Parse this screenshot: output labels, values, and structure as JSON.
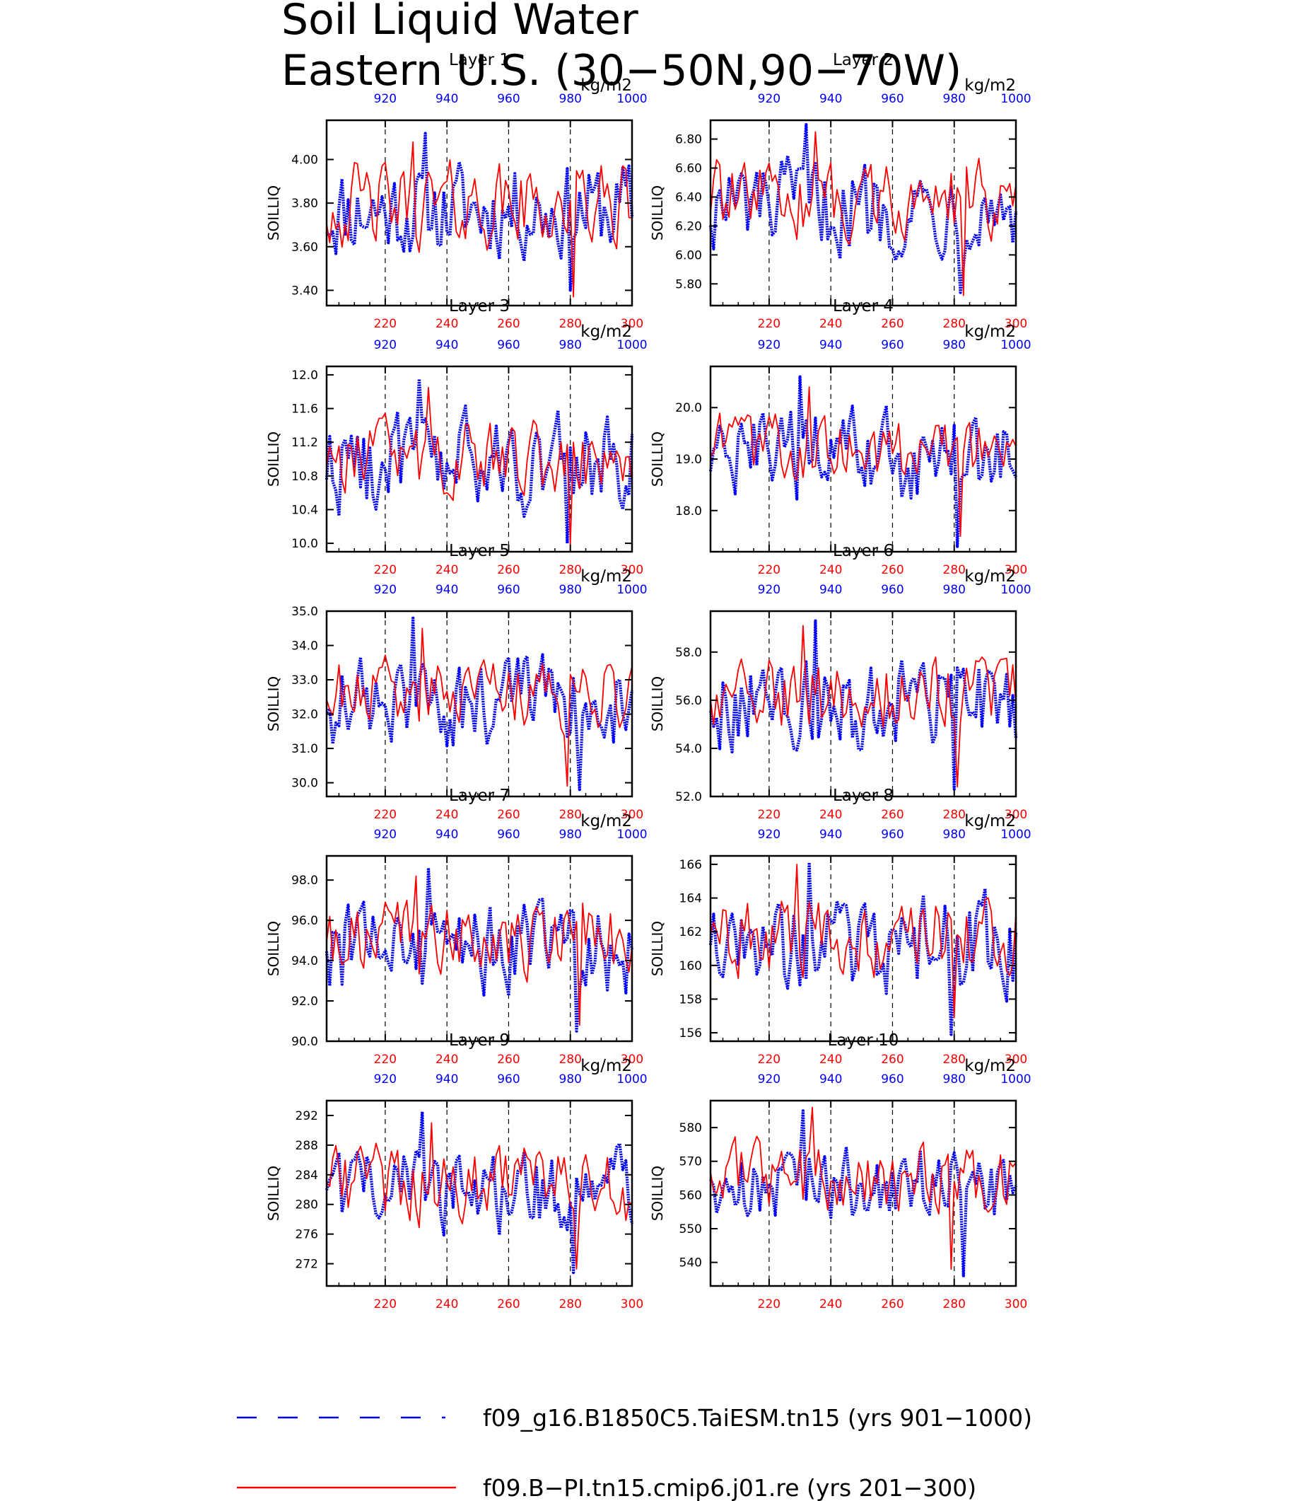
{
  "title": {
    "line1": "Soil Liquid Water",
    "line2": "Eastern U.S. (30−50N,90−70W)"
  },
  "units_label": "kg/m2",
  "ylabel": "SOILLIQ",
  "colors": {
    "series_a": "#0000ff",
    "series_b": "#ff0000",
    "axis": "#000000"
  },
  "legend": [
    {
      "name": "f09_g16.B1850C5.TaiESM.tn15 (yrs 901−1000)",
      "style": "dashed",
      "color": "#0000ff"
    },
    {
      "name": "f09.B−PI.tn15.cmip6.j01.re (yrs 201−300)",
      "style": "solid",
      "color": "#ff0000"
    }
  ],
  "chart_data": [
    {
      "type": "line",
      "title": "Layer 1",
      "ylabel": "SOILLIQ",
      "units": "kg/m2",
      "x_bottom": {
        "range": [
          201,
          300
        ],
        "ticks": [
          220,
          240,
          260,
          280,
          300
        ],
        "color": "#ff0000"
      },
      "x_top": {
        "range": [
          901,
          1000
        ],
        "ticks": [
          920,
          940,
          960,
          980,
          1000
        ],
        "color": "#0000ff"
      },
      "ylim": [
        3.33,
        4.18
      ],
      "yticks": [
        3.4,
        3.6,
        3.8,
        4.0
      ],
      "ytick_labels": [
        "3.40",
        "3.60",
        "3.80",
        "4.00"
      ],
      "vertical_dashed_lines_at": [
        220,
        240,
        260,
        280
      ],
      "series": [
        {
          "color": "#0000ff",
          "style": "dotted-thick",
          "mean": 3.77,
          "amp": 0.17,
          "min": 3.4,
          "max": 4.12
        },
        {
          "color": "#ff0000",
          "style": "solid",
          "mean": 3.79,
          "amp": 0.15,
          "min": 3.37,
          "max": 4.08
        }
      ]
    },
    {
      "type": "line",
      "title": "Layer 2",
      "ylabel": "SOILLIQ",
      "units": "kg/m2",
      "x_bottom": {
        "range": [
          201,
          300
        ],
        "ticks": [
          220,
          240,
          260,
          280,
          300
        ],
        "color": "#ff0000"
      },
      "x_top": {
        "range": [
          901,
          1000
        ],
        "ticks": [
          920,
          940,
          960,
          980,
          1000
        ],
        "color": "#0000ff"
      },
      "ylim": [
        5.65,
        6.93
      ],
      "yticks": [
        5.8,
        6.0,
        6.2,
        6.4,
        6.6,
        6.8
      ],
      "ytick_labels": [
        "5.80",
        "6.00",
        "6.20",
        "6.40",
        "6.60",
        "6.80"
      ],
      "vertical_dashed_lines_at": [
        220,
        240,
        260,
        280
      ],
      "series": [
        {
          "color": "#0000ff",
          "style": "dotted-thick",
          "mean": 6.33,
          "amp": 0.25,
          "min": 5.74,
          "max": 6.9
        },
        {
          "color": "#ff0000",
          "style": "solid",
          "mean": 6.38,
          "amp": 0.2,
          "min": 5.72,
          "max": 6.85
        }
      ]
    },
    {
      "type": "line",
      "title": "Layer 3",
      "ylabel": "SOILLIQ",
      "units": "kg/m2",
      "x_bottom": {
        "range": [
          201,
          300
        ],
        "ticks": [
          220,
          240,
          260,
          280,
          300
        ],
        "color": "#ff0000"
      },
      "x_top": {
        "range": [
          901,
          1000
        ],
        "ticks": [
          920,
          940,
          960,
          980,
          1000
        ],
        "color": "#0000ff"
      },
      "ylim": [
        9.9,
        12.1
      ],
      "yticks": [
        10.0,
        10.4,
        10.8,
        11.2,
        11.6,
        12.0
      ],
      "ytick_labels": [
        "10.0",
        "10.4",
        "10.8",
        "11.2",
        "11.6",
        "12.0"
      ],
      "vertical_dashed_lines_at": [
        220,
        240,
        260,
        280
      ],
      "series": [
        {
          "color": "#0000ff",
          "style": "dotted-thick",
          "mean": 10.95,
          "amp": 0.45,
          "min": 10.0,
          "max": 11.95
        },
        {
          "color": "#ff0000",
          "style": "solid",
          "mean": 11.05,
          "amp": 0.35,
          "min": 9.98,
          "max": 11.85
        }
      ]
    },
    {
      "type": "line",
      "title": "Layer 4",
      "ylabel": "SOILLIQ",
      "units": "kg/m2",
      "x_bottom": {
        "range": [
          201,
          300
        ],
        "ticks": [
          220,
          240,
          260,
          280,
          300
        ],
        "color": "#ff0000"
      },
      "x_top": {
        "range": [
          901,
          1000
        ],
        "ticks": [
          920,
          940,
          960,
          980,
          1000
        ],
        "color": "#0000ff"
      },
      "ylim": [
        17.2,
        20.8
      ],
      "yticks": [
        18.0,
        19.0,
        20.0
      ],
      "ytick_labels": [
        "18.0",
        "19.0",
        "20.0"
      ],
      "vertical_dashed_lines_at": [
        220,
        240,
        260,
        280
      ],
      "series": [
        {
          "color": "#0000ff",
          "style": "dotted-thick",
          "mean": 19.0,
          "amp": 0.7,
          "min": 17.3,
          "max": 20.6
        },
        {
          "color": "#ff0000",
          "style": "solid",
          "mean": 19.2,
          "amp": 0.5,
          "min": 17.5,
          "max": 20.4
        }
      ]
    },
    {
      "type": "line",
      "title": "Layer 5",
      "ylabel": "SOILLIQ",
      "units": "kg/m2",
      "x_bottom": {
        "range": [
          201,
          300
        ],
        "ticks": [
          220,
          240,
          260,
          280,
          300
        ],
        "color": "#ff0000"
      },
      "x_top": {
        "range": [
          901,
          1000
        ],
        "ticks": [
          920,
          940,
          960,
          980,
          1000
        ],
        "color": "#0000ff"
      },
      "ylim": [
        29.6,
        35.0
      ],
      "yticks": [
        30.0,
        31.0,
        32.0,
        33.0,
        34.0,
        35.0
      ],
      "ytick_labels": [
        "30.0",
        "31.0",
        "32.0",
        "33.0",
        "34.0",
        "35.0"
      ],
      "vertical_dashed_lines_at": [
        220,
        240,
        260,
        280
      ],
      "series": [
        {
          "color": "#0000ff",
          "style": "dotted-thick",
          "mean": 32.3,
          "amp": 1.0,
          "min": 29.8,
          "max": 34.8
        },
        {
          "color": "#ff0000",
          "style": "solid",
          "mean": 32.6,
          "amp": 0.8,
          "min": 29.9,
          "max": 34.5
        }
      ]
    },
    {
      "type": "line",
      "title": "Layer 6",
      "ylabel": "SOILLIQ",
      "units": "kg/m2",
      "x_bottom": {
        "range": [
          201,
          300
        ],
        "ticks": [
          220,
          240,
          260,
          280,
          300
        ],
        "color": "#ff0000"
      },
      "x_top": {
        "range": [
          901,
          1000
        ],
        "ticks": [
          920,
          940,
          960,
          980,
          1000
        ],
        "color": "#0000ff"
      },
      "ylim": [
        52.0,
        59.7
      ],
      "yticks": [
        52.0,
        54.0,
        56.0,
        58.0
      ],
      "ytick_labels": [
        "52.0",
        "54.0",
        "56.0",
        "58.0"
      ],
      "vertical_dashed_lines_at": [
        220,
        240,
        260,
        280
      ],
      "series": [
        {
          "color": "#0000ff",
          "style": "dotted-thick",
          "mean": 55.8,
          "amp": 1.5,
          "min": 52.3,
          "max": 59.3
        },
        {
          "color": "#ff0000",
          "style": "solid",
          "mean": 56.2,
          "amp": 1.2,
          "min": 52.4,
          "max": 59.1
        }
      ]
    },
    {
      "type": "line",
      "title": "Layer 7",
      "ylabel": "SOILLIQ",
      "units": "kg/m2",
      "x_bottom": {
        "range": [
          201,
          300
        ],
        "ticks": [
          220,
          240,
          260,
          280,
          300
        ],
        "color": "#ff0000"
      },
      "x_top": {
        "range": [
          901,
          1000
        ],
        "ticks": [
          920,
          940,
          960,
          980,
          1000
        ],
        "color": "#0000ff"
      },
      "ylim": [
        90.0,
        99.2
      ],
      "yticks": [
        90.0,
        92.0,
        94.0,
        96.0,
        98.0
      ],
      "ytick_labels": [
        "90.0",
        "92.0",
        "94.0",
        "96.0",
        "98.0"
      ],
      "vertical_dashed_lines_at": [
        220,
        240,
        260,
        280
      ],
      "series": [
        {
          "color": "#0000ff",
          "style": "dotted-thick",
          "mean": 94.6,
          "amp": 1.8,
          "min": 90.5,
          "max": 98.6
        },
        {
          "color": "#ff0000",
          "style": "solid",
          "mean": 95.0,
          "amp": 1.4,
          "min": 90.8,
          "max": 98.2
        }
      ]
    },
    {
      "type": "line",
      "title": "Layer 8",
      "ylabel": "SOILLIQ",
      "units": "kg/m2",
      "x_bottom": {
        "range": [
          201,
          300
        ],
        "ticks": [
          220,
          240,
          260,
          280,
          300
        ],
        "color": "#ff0000"
      },
      "x_top": {
        "range": [
          901,
          1000
        ],
        "ticks": [
          920,
          940,
          960,
          980,
          1000
        ],
        "color": "#0000ff"
      },
      "ylim": [
        155.5,
        166.5
      ],
      "yticks": [
        156,
        158,
        160,
        162,
        164,
        166
      ],
      "ytick_labels": [
        "156",
        "158",
        "160",
        "162",
        "164",
        "166"
      ],
      "vertical_dashed_lines_at": [
        220,
        240,
        260,
        280
      ],
      "series": [
        {
          "color": "#0000ff",
          "style": "dotted-thick",
          "mean": 161.2,
          "amp": 2.2,
          "min": 155.9,
          "max": 166.1
        },
        {
          "color": "#ff0000",
          "style": "solid",
          "mean": 161.8,
          "amp": 1.8,
          "min": 156.9,
          "max": 166.0
        }
      ]
    },
    {
      "type": "line",
      "title": "Layer 9",
      "ylabel": "SOILLIQ",
      "units": "kg/m2",
      "x_bottom": {
        "range": [
          201,
          300
        ],
        "ticks": [
          220,
          240,
          260,
          280,
          300
        ],
        "color": "#ff0000"
      },
      "x_top": {
        "range": [
          901,
          1000
        ],
        "ticks": [
          920,
          940,
          960,
          980,
          1000
        ],
        "color": "#0000ff"
      },
      "ylim": [
        269.0,
        294.0
      ],
      "yticks": [
        272,
        276,
        280,
        284,
        288,
        292
      ],
      "ytick_labels": [
        "272",
        "276",
        "280",
        "284",
        "288",
        "292"
      ],
      "vertical_dashed_lines_at": [
        220,
        240,
        260,
        280
      ],
      "series": [
        {
          "color": "#0000ff",
          "style": "dotted-thick",
          "mean": 281.5,
          "amp": 4.5,
          "min": 270.8,
          "max": 292.5
        },
        {
          "color": "#ff0000",
          "style": "solid",
          "mean": 282.5,
          "amp": 4.0,
          "min": 271.3,
          "max": 291.0
        }
      ]
    },
    {
      "type": "line",
      "title": "Layer 10",
      "ylabel": "SOILLIQ",
      "units": "kg/m2",
      "x_bottom": {
        "range": [
          201,
          300
        ],
        "ticks": [
          220,
          240,
          260,
          280,
          300
        ],
        "color": "#ff0000"
      },
      "x_top": {
        "range": [
          901,
          1000
        ],
        "ticks": [
          920,
          940,
          960,
          980,
          1000
        ],
        "color": "#0000ff"
      },
      "ylim": [
        533.0,
        588.0
      ],
      "yticks": [
        540,
        550,
        560,
        570,
        580
      ],
      "ytick_labels": [
        "540",
        "550",
        "560",
        "570",
        "580"
      ],
      "vertical_dashed_lines_at": [
        220,
        240,
        260,
        280
      ],
      "series": [
        {
          "color": "#0000ff",
          "style": "dotted-thick",
          "mean": 563.0,
          "amp": 9.0,
          "min": 536.0,
          "max": 585.0
        },
        {
          "color": "#ff0000",
          "style": "solid",
          "mean": 565.0,
          "amp": 8.0,
          "min": 538.0,
          "max": 586.0
        }
      ]
    }
  ]
}
